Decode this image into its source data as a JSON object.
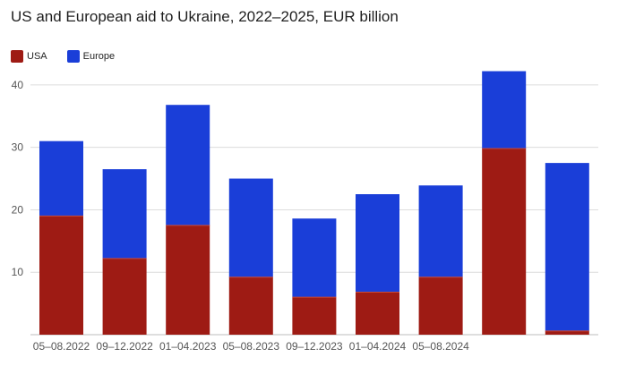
{
  "chart_data": {
    "type": "bar",
    "stacked": true,
    "title": "US and European aid to Ukraine, 2022–2025, EUR billion",
    "categories": [
      "05–08.2022",
      "09–12.2022",
      "01–04.2023",
      "05–08.2023",
      "09–12.2023",
      "01–04.2024",
      "05–08.2024",
      "",
      ""
    ],
    "series": [
      {
        "name": "USA",
        "color": "#9e1b14",
        "values": [
          19,
          12.2,
          17.5,
          9.2,
          6,
          6.8,
          9.2,
          29.8,
          0.6
        ]
      },
      {
        "name": "Europe",
        "color": "#1a3ed8",
        "values": [
          12,
          14.3,
          19.3,
          15.8,
          12.6,
          15.7,
          14.7,
          12.4,
          26.9
        ]
      }
    ],
    "yticks": [
      10,
      20,
      30,
      40
    ],
    "ylim": [
      0,
      45
    ],
    "grid": true,
    "legend_position": "top-left"
  }
}
